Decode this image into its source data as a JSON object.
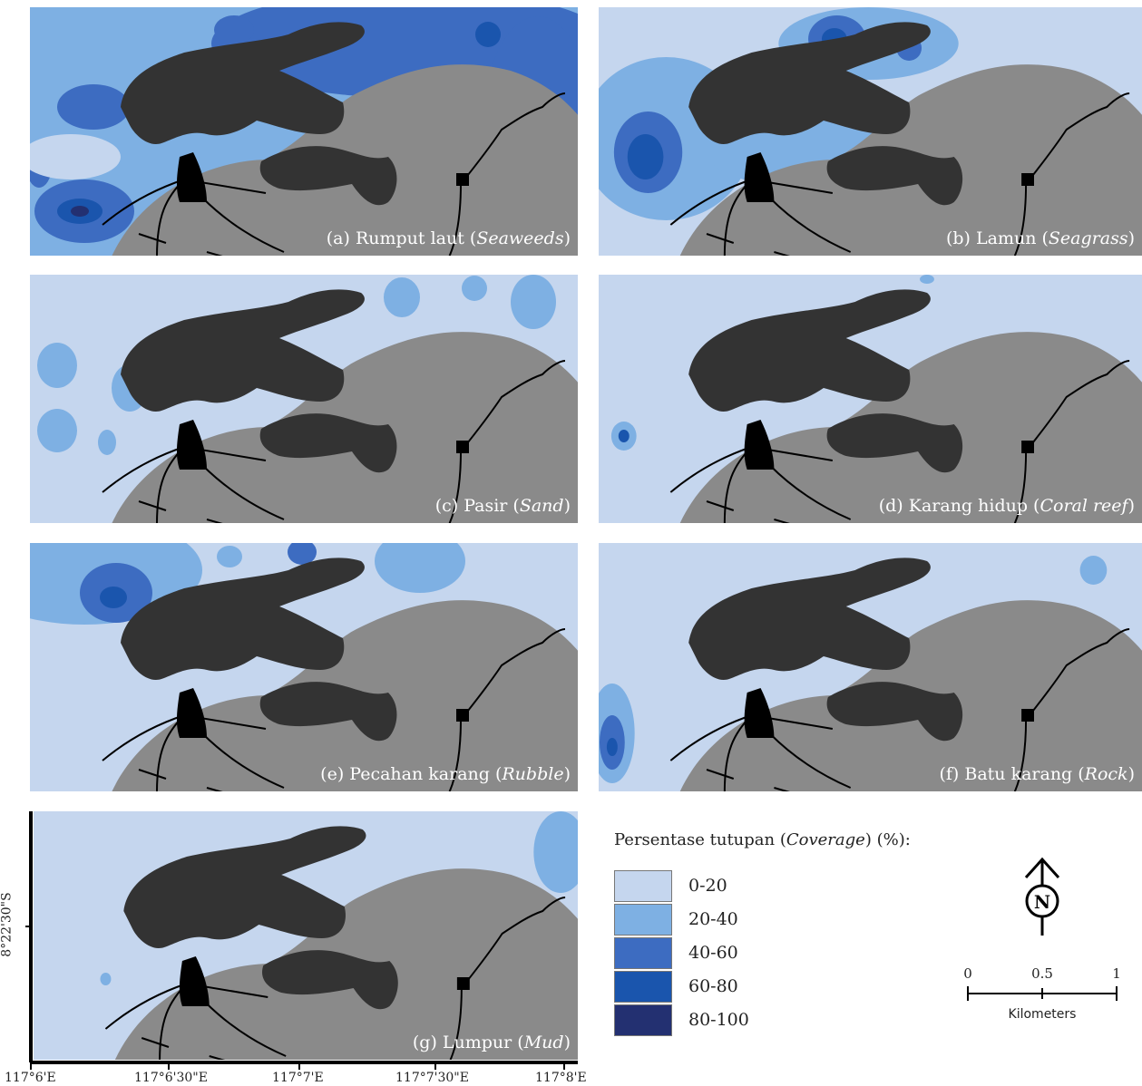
{
  "panels": [
    {
      "id": "a",
      "prefix": "(a) Rumput laut (",
      "italic": "Seaweeds",
      "suffix": ")"
    },
    {
      "id": "b",
      "prefix": "(b) Lamun (",
      "italic": "Seagrass",
      "suffix": ")"
    },
    {
      "id": "c",
      "prefix": "(c) Pasir (",
      "italic": "Sand",
      "suffix": ")"
    },
    {
      "id": "d",
      "prefix": "(d) Karang hidup (",
      "italic": "Coral reef",
      "suffix": ")"
    },
    {
      "id": "e",
      "prefix": "(e) Pecahan karang (",
      "italic": "Rubble",
      "suffix": ")"
    },
    {
      "id": "f",
      "prefix": "(f) Batu karang (",
      "italic": "Rock",
      "suffix": ")"
    },
    {
      "id": "g",
      "prefix": "(g) Lumpur (",
      "italic": "Mud",
      "suffix": ")"
    }
  ],
  "legend": {
    "title_prefix": "Persentase tutupan (",
    "title_italic": "Coverage",
    "title_suffix": ") (%):",
    "items": [
      {
        "label": "0-20",
        "color": "#c5d6ee"
      },
      {
        "label": "20-40",
        "color": "#7eb0e3"
      },
      {
        "label": "40-60",
        "color": "#3d6cc1"
      },
      {
        "label": "60-80",
        "color": "#1a55ad"
      },
      {
        "label": "80-100",
        "color": "#233071"
      }
    ]
  },
  "scale_bar": {
    "ticks": [
      "0",
      "0.5",
      "1"
    ],
    "unit": "Kilometers"
  },
  "north_arrow": {
    "letter": "N"
  },
  "axes": {
    "x_ticks": [
      "117°6'E",
      "117°6'30\"E",
      "117°7'E",
      "117°7'30\"E",
      "117°8'E"
    ],
    "y_tick": "8°22'30\"S"
  },
  "colors": {
    "land": "#8a8a8a",
    "mangrove": "#333333",
    "settlement": "#000000",
    "road": "#000000",
    "water_base": "#c5d6ee"
  }
}
